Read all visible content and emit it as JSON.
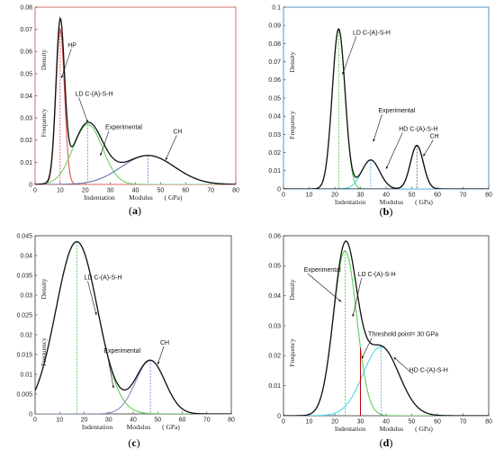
{
  "chart_data": [
    {
      "panel": "(a)",
      "type": "line",
      "xlabel_parts": [
        "Indentation",
        "Modulus",
        "( GPa)"
      ],
      "ylabel_parts": [
        "Frequency",
        "Density"
      ],
      "xlim": [
        0,
        80
      ],
      "ylim": [
        0,
        0.08
      ],
      "xticks": [
        "0",
        "10",
        "20",
        "30",
        "40",
        "50",
        "60",
        "70",
        "80"
      ],
      "yticks": [
        "0",
        "0.01",
        "0.02",
        "0.03",
        "0.04",
        "0.05",
        "0.06",
        "0.07",
        "0.08"
      ],
      "frame_color": "#c0504d",
      "components": [
        {
          "label": "HP",
          "mean": 10,
          "sd": 1.7,
          "weight": 0.299,
          "color": "#e0575a",
          "dash_color": "#d22"
        },
        {
          "label": "LD C-(A)-S-H",
          "mean": 21,
          "sd": 5.9,
          "weight": 0.4,
          "color": "#6ccf6c",
          "dash_color": "#3a3"
        },
        {
          "label": "CH",
          "mean": 45,
          "sd": 10.6,
          "weight": 0.348,
          "color": "#6673a8",
          "dash_color": "#55c"
        }
      ],
      "experimental_label": "Experimental",
      "experimental_color": "#111111",
      "annotations": [
        {
          "text": "HP",
          "tx": 13,
          "ty": 0.062,
          "ax": 10.5,
          "ay": 0.048
        },
        {
          "text": "LD C-(A)-S-H",
          "tx": 16,
          "ty": 0.04,
          "ax": 21,
          "ay": 0.028
        },
        {
          "text": "Experimental",
          "tx": 28,
          "ty": 0.025,
          "ax": 26,
          "ay": 0.013
        },
        {
          "text": "CH",
          "tx": 55,
          "ty": 0.023,
          "ax": 52,
          "ay": 0.011
        }
      ]
    },
    {
      "panel": "(b)",
      "type": "line",
      "xlabel_parts": [
        "Indentation",
        "Modulus",
        "( GPa)"
      ],
      "ylabel_parts": [
        "Frequency",
        "Density"
      ],
      "xlim": [
        0,
        80
      ],
      "ylim": [
        0,
        0.1
      ],
      "xticks": [
        "0",
        "10",
        "20",
        "30",
        "40",
        "50",
        "60",
        "70",
        "80"
      ],
      "yticks": [
        "0",
        "0.01",
        "0.02",
        "0.03",
        "0.04",
        "0.05",
        "0.06",
        "0.07",
        "0.08",
        "0.09",
        "0.1"
      ],
      "frame_color": "#2e75b6",
      "components": [
        {
          "label": "LD C-(A)-S-H",
          "mean": 21.5,
          "sd": 2.5,
          "weight": 0.552,
          "color": "#5fcf5f",
          "dash_color": "#3a3"
        },
        {
          "label": "HD C-(A)-S-H",
          "mean": 34,
          "sd": 3.5,
          "weight": 0.14,
          "color": "#4ad8e8",
          "dash_color": "#39c"
        },
        {
          "label": "CH",
          "mean": 52,
          "sd": 2.5,
          "weight": 0.15,
          "color": "#111111",
          "dash_color": "#336"
        }
      ],
      "experimental_label": "Experimental",
      "experimental_color": "#111111",
      "annotations": [
        {
          "text": "LD C-(A)-S-H",
          "tx": 27,
          "ty": 0.085,
          "ax": 23,
          "ay": 0.063
        },
        {
          "text": "Experimental",
          "tx": 37,
          "ty": 0.042,
          "ax": 35,
          "ay": 0.026
        },
        {
          "text": "HD C-(A)-S-H",
          "tx": 45,
          "ty": 0.032,
          "ax": 40,
          "ay": 0.011
        },
        {
          "text": "CH",
          "tx": 57,
          "ty": 0.028,
          "ax": 54.5,
          "ay": 0.018
        }
      ]
    },
    {
      "panel": "(c)",
      "type": "line",
      "xlabel_parts": [
        "Indentation",
        "Modulus",
        "( GPa)"
      ],
      "ylabel_parts": [
        "Frequency",
        "Density"
      ],
      "xlim": [
        0,
        80
      ],
      "ylim": [
        0,
        0.045
      ],
      "xticks": [
        "0",
        "10",
        "20",
        "30",
        "40",
        "50",
        "60",
        "70",
        "80"
      ],
      "yticks": [
        "0",
        "0.005",
        "0.01",
        "0.015",
        "0.02",
        "0.025",
        "0.03",
        "0.035",
        "0.04",
        "0.045"
      ],
      "frame_color": "#333333",
      "components": [
        {
          "label": "LD C-(A)-S-H",
          "mean": 17,
          "sd": 8.5,
          "weight": 0.927,
          "color": "#5fcf5f",
          "dash_color": "#3a3"
        },
        {
          "label": "CH",
          "mean": 47,
          "sd": 6,
          "weight": 0.203,
          "color": "#8a8fc0",
          "dash_color": "#55c"
        }
      ],
      "experimental_label": "Experimental",
      "experimental_color": "#111111",
      "annotations": [
        {
          "text": "LD C-(A)-S-H",
          "tx": 20,
          "ty": 0.034,
          "ax": 25,
          "ay": 0.025
        },
        {
          "text": "Experimental",
          "tx": 28,
          "ty": 0.0155,
          "ax": 32,
          "ay": 0.0065
        },
        {
          "text": "CH",
          "tx": 51,
          "ty": 0.0175,
          "ax": 50,
          "ay": 0.0125
        }
      ]
    },
    {
      "panel": "(d)",
      "type": "line",
      "xlabel_parts": [
        "Indentation",
        "Modulus",
        "( GPa)"
      ],
      "ylabel_parts": [
        "Frequency",
        "Density"
      ],
      "xlim": [
        0,
        80
      ],
      "ylim": [
        0,
        0.06
      ],
      "xticks": [
        "0",
        "10",
        "20",
        "30",
        "40",
        "50",
        "60",
        "70",
        "80"
      ],
      "yticks": [
        "0",
        "0.01",
        "0.02",
        "0.03",
        "0.04",
        "0.05",
        "0.06"
      ],
      "frame_color": "#333333",
      "components": [
        {
          "label": "LD C-(A)-S-H",
          "mean": 24,
          "sd": 4.5,
          "weight": 0.62,
          "color": "#5fcf5f",
          "dash_color": "#3a3"
        },
        {
          "label": "HD C-(A)-S-H",
          "mean": 38,
          "sd": 7,
          "weight": 0.403,
          "color": "#4ad8e8",
          "dash_color": "#39c"
        }
      ],
      "experimental_label": "Experimental",
      "experimental_color": "#111111",
      "threshold": {
        "label": "Threshold point= 30 GPa",
        "x": 30,
        "color": "#c00000"
      },
      "annotations": [
        {
          "text": "Experimental",
          "tx": 8,
          "ty": 0.048,
          "ax": 22.5,
          "ay": 0.038
        },
        {
          "text": "LD C-(A)-S-H",
          "tx": 29,
          "ty": 0.0465,
          "ax": 27,
          "ay": 0.033
        },
        {
          "text": "Threshold point= 30 GPa",
          "tx": 33,
          "ty": 0.0265,
          "ax": 30.5,
          "ay": 0.019
        },
        {
          "text": "HD C-(A)-S-H",
          "tx": 49,
          "ty": 0.0145,
          "ax": 43,
          "ay": 0.0195
        }
      ]
    }
  ]
}
